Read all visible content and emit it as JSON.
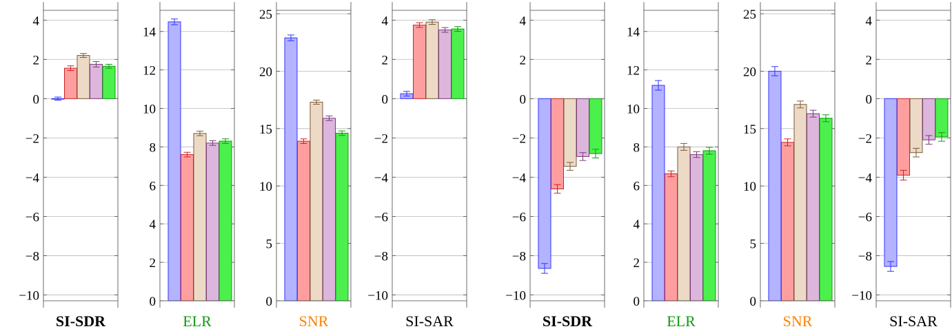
{
  "series_colors": {
    "fill": [
      "#b3b3ff",
      "#ff9e9e",
      "#ecdac6",
      "#dcb6dc",
      "#4cf04c"
    ],
    "stroke": [
      "#3333ff",
      "#cc2222",
      "#7a5a3a",
      "#7a3a7a",
      "#119911"
    ]
  },
  "chart_data": [
    {
      "type": "bar",
      "xlabel": "SI-SDR",
      "xlabel_color": "#000000",
      "xlabel_bold": true,
      "ylim": [
        -10.3,
        4.5
      ],
      "yticks": [
        -10,
        -8,
        -6,
        -4,
        -2,
        0,
        2,
        4
      ],
      "ytick_labels": [
        "−10",
        "−8",
        "−6",
        "−4",
        "−2",
        "0",
        "2",
        "4"
      ],
      "values": [
        0.0,
        1.55,
        2.2,
        1.75,
        1.65
      ],
      "errors": [
        0.08,
        0.12,
        0.1,
        0.14,
        0.1
      ]
    },
    {
      "type": "bar",
      "xlabel": "ELR",
      "xlabel_color": "#119911",
      "xlabel_bold": false,
      "ylim": [
        0,
        15.1
      ],
      "yticks": [
        0,
        2,
        4,
        6,
        8,
        10,
        12,
        14
      ],
      "ytick_labels": [
        "0",
        "2",
        "4",
        "6",
        "8",
        "10",
        "12",
        "14"
      ],
      "values": [
        14.5,
        7.6,
        8.7,
        8.2,
        8.3
      ],
      "errors": [
        0.15,
        0.12,
        0.12,
        0.12,
        0.12
      ]
    },
    {
      "type": "bar",
      "xlabel": "SNR",
      "xlabel_color": "#ff8000",
      "xlabel_bold": false,
      "ylim": [
        0,
        25.3
      ],
      "yticks": [
        0,
        5,
        10,
        15,
        20,
        25
      ],
      "ytick_labels": [
        "0",
        "5",
        "10",
        "15",
        "20",
        "25"
      ],
      "values": [
        22.9,
        13.9,
        17.3,
        15.9,
        14.6
      ],
      "errors": [
        0.25,
        0.2,
        0.18,
        0.2,
        0.2
      ]
    },
    {
      "type": "bar",
      "xlabel": "SI-SAR",
      "xlabel_color": "#000000",
      "xlabel_bold": false,
      "ylim": [
        -10.3,
        4.5
      ],
      "yticks": [
        -10,
        -8,
        -6,
        -4,
        -2,
        0,
        2,
        4
      ],
      "ytick_labels": [
        "−10",
        "−8",
        "−6",
        "−4",
        "−2",
        "0",
        "2",
        "4"
      ],
      "values": [
        0.25,
        3.75,
        3.9,
        3.5,
        3.55
      ],
      "errors": [
        0.12,
        0.12,
        0.12,
        0.12,
        0.12
      ]
    },
    {
      "type": "bar",
      "xlabel": "SI-SDR",
      "xlabel_color": "#000000",
      "xlabel_bold": true,
      "ylim": [
        -10.3,
        4.5
      ],
      "yticks": [
        -10,
        -8,
        -6,
        -4,
        -2,
        0,
        2,
        4
      ],
      "ytick_labels": [
        "−10",
        "−8",
        "−6",
        "−4",
        "−2",
        "0",
        "2",
        "4"
      ],
      "values": [
        -8.65,
        -4.6,
        -3.45,
        -2.95,
        -2.8
      ],
      "errors": [
        0.25,
        0.22,
        0.2,
        0.2,
        0.22
      ]
    },
    {
      "type": "bar",
      "xlabel": "ELR",
      "xlabel_color": "#119911",
      "xlabel_bold": false,
      "ylim": [
        0,
        15.1
      ],
      "yticks": [
        0,
        2,
        4,
        6,
        8,
        10,
        12,
        14
      ],
      "ytick_labels": [
        "0",
        "2",
        "4",
        "6",
        "8",
        "10",
        "12",
        "14"
      ],
      "values": [
        11.2,
        6.6,
        8.0,
        7.6,
        7.8
      ],
      "errors": [
        0.25,
        0.15,
        0.18,
        0.15,
        0.18
      ]
    },
    {
      "type": "bar",
      "xlabel": "SNR",
      "xlabel_color": "#ff8000",
      "xlabel_bold": false,
      "ylim": [
        0,
        25.3
      ],
      "yticks": [
        0,
        5,
        10,
        15,
        20,
        25
      ],
      "ytick_labels": [
        "0",
        "5",
        "10",
        "15",
        "20",
        "25"
      ],
      "values": [
        20.0,
        13.8,
        17.1,
        16.3,
        15.9
      ],
      "errors": [
        0.4,
        0.3,
        0.3,
        0.3,
        0.3
      ]
    },
    {
      "type": "bar",
      "xlabel": "SI-SAR",
      "xlabel_color": "#000000",
      "xlabel_bold": false,
      "ylim": [
        -10.3,
        4.5
      ],
      "yticks": [
        -10,
        -8,
        -6,
        -4,
        -2,
        0,
        2,
        4
      ],
      "ytick_labels": [
        "−10",
        "−8",
        "−6",
        "−4",
        "−2",
        "0",
        "2",
        "4"
      ],
      "values": [
        -8.55,
        -3.9,
        -2.75,
        -2.1,
        -1.95
      ],
      "errors": [
        0.25,
        0.25,
        0.22,
        0.22,
        0.22
      ]
    }
  ]
}
